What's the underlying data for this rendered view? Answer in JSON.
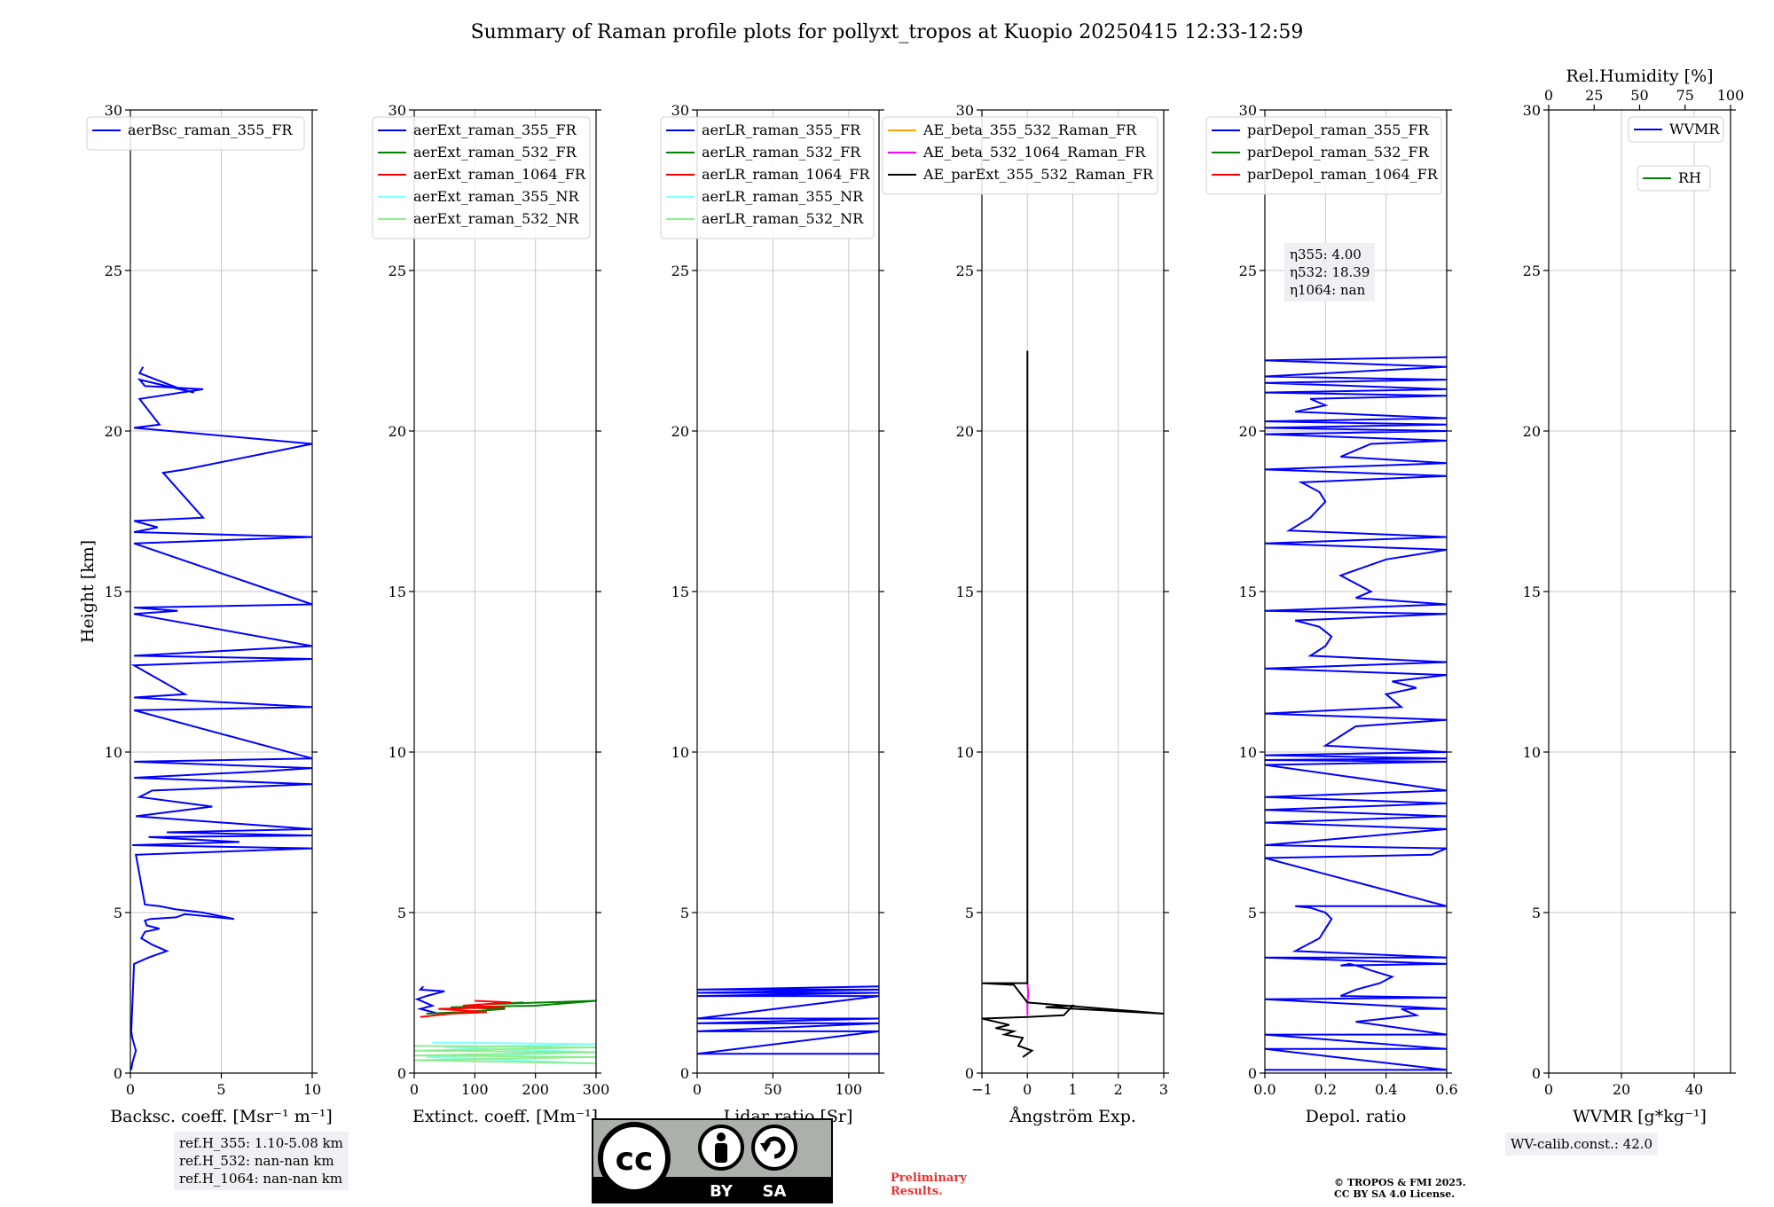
{
  "figure": {
    "title": "Summary of Raman profile plots for pollyxt_tropos at Kuopio 20250415 12:33-12:59",
    "refh": [
      "ref.H_355: 1.10-5.08 km",
      "ref.H_532: nan-nan km",
      "ref.H_1064: nan-nan km"
    ],
    "eta": [
      "η355: 4.00",
      "η532: 18.39",
      "η1064: nan"
    ],
    "wvcalib": "WV-calib.const.: 42.0",
    "license_badge": [
      "BY",
      "SA"
    ],
    "preliminary": [
      "Preliminary",
      "Results."
    ],
    "copyright": [
      "© TROPOS & FMI 2025.",
      "CC BY SA 4.0 License."
    ]
  },
  "colors": {
    "blue": "#0000ff",
    "green": "#008000",
    "red": "#ff0000",
    "cyan": "#80ffff",
    "lightgreen": "#90ee90",
    "orange": "#ffa500",
    "magenta": "#ff00ff",
    "black": "#000000",
    "grid": "#c8c8c8",
    "preliminary": "#e8312f"
  },
  "chart_data": [
    {
      "type": "line",
      "xlabel": "Backsc. coeff. [Msr⁻¹ m⁻¹]",
      "ylabel": "Height [km]",
      "xlim": [
        0,
        10
      ],
      "ylim": [
        0,
        30
      ],
      "xticks": [
        0,
        5,
        10
      ],
      "yticks": [
        0,
        5,
        10,
        15,
        20,
        25,
        30
      ],
      "grid": true,
      "legend": "top-left",
      "series": [
        {
          "name": "aerBsc_raman_355_FR",
          "color": "blue",
          "x": [
            0.05,
            0.1,
            0.2,
            0.3,
            0.2,
            0.1,
            0.05,
            0.2,
            1.0,
            2.0,
            1.2,
            0.6,
            0.8,
            1.6,
            0.9,
            0.8,
            1.1,
            2.5,
            3.0,
            5.7,
            4.0,
            2.5,
            1.6,
            0.8,
            0.3,
            10,
            0.1,
            6,
            1.0,
            10,
            2.0,
            10,
            0.3,
            4.5,
            0.5,
            1.2,
            10,
            0.2,
            7.3,
            10,
            0.2,
            10,
            0.2,
            10,
            0.2,
            3.0,
            0.2,
            10,
            0.2,
            10,
            0.2,
            2.6,
            0.2,
            10,
            0.2,
            10,
            0.2,
            1.5,
            0.2,
            4.0,
            1.8,
            3.0,
            10,
            0.2,
            1.6,
            0.5,
            4.0,
            0.8,
            0.5,
            3.5,
            2.8,
            0.5,
            0.7
          ],
          "y": [
            0.1,
            0.3,
            0.5,
            0.7,
            0.9,
            1.1,
            1.3,
            3.4,
            3.6,
            3.8,
            4.0,
            4.2,
            4.4,
            4.5,
            4.6,
            4.75,
            4.8,
            4.85,
            4.95,
            4.8,
            5.0,
            5.1,
            5.2,
            5.25,
            6.8,
            7.0,
            7.1,
            7.2,
            7.35,
            7.4,
            7.5,
            7.6,
            8.0,
            8.3,
            8.6,
            8.8,
            9.0,
            9.2,
            9.4,
            9.5,
            9.7,
            9.8,
            11.3,
            11.4,
            11.7,
            11.8,
            12.7,
            12.9,
            13.0,
            13.3,
            14.3,
            14.4,
            14.5,
            14.6,
            16.5,
            16.7,
            16.85,
            17.0,
            17.2,
            17.3,
            18.7,
            18.8,
            19.6,
            20.1,
            20.2,
            21.0,
            21.3,
            21.4,
            21.6,
            21.2,
            21.3,
            21.8,
            22.0
          ]
        }
      ]
    },
    {
      "type": "line",
      "xlabel": "Extinct. coeff. [Mm⁻¹]",
      "xlim": [
        0,
        300
      ],
      "ylim": [
        0,
        30
      ],
      "xticks": [
        0,
        100,
        200,
        300
      ],
      "yticks": [
        0,
        5,
        10,
        15,
        20,
        25,
        30
      ],
      "grid": true,
      "legend": "top-left",
      "series": [
        {
          "name": "aerExt_raman_355_FR",
          "color": "blue",
          "x": [
            40,
            10,
            30,
            5,
            20,
            50,
            10,
            15
          ],
          "y": [
            1.85,
            2.0,
            2.1,
            2.3,
            2.4,
            2.55,
            2.6,
            2.7
          ]
        },
        {
          "name": "aerExt_raman_532_FR",
          "color": "green",
          "x": [
            20,
            80,
            150,
            60,
            200,
            300,
            120,
            180
          ],
          "y": [
            1.85,
            1.9,
            2.0,
            2.05,
            2.1,
            2.25,
            2.15,
            2.2
          ]
        },
        {
          "name": "aerExt_raman_1064_FR",
          "color": "red",
          "x": [
            10,
            60,
            120,
            40,
            150,
            80,
            160,
            100
          ],
          "y": [
            1.75,
            1.85,
            1.9,
            2.0,
            2.05,
            2.1,
            2.2,
            2.25
          ]
        },
        {
          "name": "aerExt_raman_355_NR",
          "color": "cyan",
          "x": [
            300,
            20,
            300,
            50,
            300,
            30
          ],
          "y": [
            0.3,
            0.5,
            0.65,
            0.8,
            0.9,
            0.95
          ]
        },
        {
          "name": "aerExt_raman_532_NR",
          "color": "lightgreen",
          "x": [
            300,
            0,
            300,
            0,
            300,
            0,
            300,
            0
          ],
          "y": [
            0.3,
            0.4,
            0.5,
            0.55,
            0.65,
            0.7,
            0.8,
            0.85
          ]
        }
      ]
    },
    {
      "type": "line",
      "xlabel": "Lidar ratio [Sr]",
      "xlim": [
        0,
        120
      ],
      "ylim": [
        0,
        30
      ],
      "xticks": [
        0,
        50,
        100
      ],
      "yticks": [
        0,
        5,
        10,
        15,
        20,
        25,
        30
      ],
      "grid": true,
      "legend": "top-left",
      "series": [
        {
          "name": "aerLR_raman_355_FR",
          "color": "blue",
          "x": [
            120,
            0,
            120,
            0,
            120,
            0,
            120,
            0,
            120,
            0,
            120,
            0,
            120,
            0,
            120
          ],
          "y": [
            0.6,
            0.6,
            1.3,
            1.3,
            1.55,
            1.55,
            1.7,
            1.7,
            2.4,
            2.4,
            2.5,
            2.5,
            2.6,
            2.6,
            2.7
          ]
        },
        {
          "name": "aerLR_raman_532_FR",
          "color": "green",
          "x": [],
          "y": []
        },
        {
          "name": "aerLR_raman_1064_FR",
          "color": "red",
          "x": [],
          "y": []
        },
        {
          "name": "aerLR_raman_355_NR",
          "color": "cyan",
          "x": [],
          "y": []
        },
        {
          "name": "aerLR_raman_532_NR",
          "color": "lightgreen",
          "x": [],
          "y": []
        }
      ]
    },
    {
      "type": "line",
      "xlabel": "Ångström Exp.",
      "xlim": [
        -1,
        3
      ],
      "ylim": [
        0,
        30
      ],
      "xticks": [
        -1,
        0,
        1,
        2,
        3
      ],
      "yticks": [
        0,
        5,
        10,
        15,
        20,
        25,
        30
      ],
      "grid": true,
      "legend": "top",
      "series": [
        {
          "name": "AE_beta_355_532_Raman_FR",
          "color": "orange",
          "x": [],
          "y": []
        },
        {
          "name": "AE_beta_532_1064_Raman_FR",
          "color": "magenta",
          "x": [
            0.0,
            0.0,
            0.02,
            0.0
          ],
          "y": [
            1.8,
            2.2,
            2.5,
            2.8
          ]
        },
        {
          "name": "AE_parExt_355_532_Raman_FR",
          "color": "black",
          "x": [
            -0.1,
            0.1,
            -0.2,
            -0.1,
            -0.5,
            -0.3,
            -0.7,
            -0.4,
            -1.0,
            0.0,
            0.8,
            1.0,
            0.4,
            3.0,
            0.0,
            -0.3,
            -1.0,
            0.0,
            0.0
          ],
          "y": [
            0.5,
            0.7,
            0.85,
            1.1,
            1.2,
            1.3,
            1.4,
            1.5,
            1.7,
            1.75,
            1.8,
            2.1,
            2.05,
            1.85,
            2.2,
            2.75,
            2.8,
            2.8,
            22.5
          ]
        }
      ]
    },
    {
      "type": "line",
      "xlabel": "Depol. ratio",
      "xlim": [
        0.0,
        0.6
      ],
      "ylim": [
        0,
        30
      ],
      "xticks": [
        0.0,
        0.2,
        0.4,
        0.6
      ],
      "yticks": [
        0,
        5,
        10,
        15,
        20,
        25,
        30
      ],
      "grid": true,
      "legend": "top-left",
      "series": [
        {
          "name": "parDepol_raman_355_FR",
          "color": "blue",
          "x": [
            0.0,
            0.6,
            0.0,
            0.6,
            0.0,
            0.6,
            0.3,
            0.5,
            0.45,
            0.6,
            0.0,
            0.6,
            0.25,
            0.3,
            0.38,
            0.42,
            0.35,
            0.32,
            0.28,
            0.25,
            0.6,
            0.0,
            0.6,
            0.1,
            0.18,
            0.22,
            0.2,
            0.15,
            0.1,
            0.6,
            0.0,
            0.55,
            0.6,
            0.0,
            0.6,
            0.0,
            0.6,
            0.0,
            0.6,
            0.0,
            0.6,
            0.0,
            0.6,
            0.0,
            0.6,
            0.0,
            0.6,
            0.2,
            0.25,
            0.3,
            0.6,
            0.0,
            0.45,
            0.4,
            0.5,
            0.42,
            0.6,
            0.0,
            0.6,
            0.15,
            0.2,
            0.22,
            0.18,
            0.1,
            0.6,
            0.0,
            0.6,
            0.3,
            0.35,
            0.25,
            0.4,
            0.6,
            0.0,
            0.6,
            0.08,
            0.15,
            0.2,
            0.18,
            0.12,
            0.6,
            0.0,
            0.6,
            0.25,
            0.3,
            0.35,
            0.6,
            0.0,
            0.6,
            0.0,
            0.6,
            0.0,
            0.6,
            0.1,
            0.2,
            0.15,
            0.6,
            0.0,
            0.6,
            0.0,
            0.6,
            0.0,
            0.6,
            0.0,
            0.6
          ],
          "y": [
            0.1,
            0.1,
            0.75,
            0.75,
            1.2,
            1.2,
            1.6,
            1.8,
            2.0,
            2.0,
            2.3,
            2.35,
            2.4,
            2.6,
            2.8,
            3.0,
            3.2,
            3.3,
            3.4,
            3.35,
            3.4,
            3.6,
            3.6,
            3.8,
            4.2,
            4.8,
            5.0,
            5.15,
            5.2,
            5.2,
            6.7,
            6.8,
            7.0,
            7.1,
            7.6,
            7.8,
            8.0,
            8.2,
            8.4,
            8.6,
            8.8,
            9.6,
            9.7,
            9.75,
            9.8,
            9.9,
            10.0,
            10.2,
            10.5,
            10.8,
            11.0,
            11.2,
            11.4,
            11.8,
            12.0,
            12.2,
            12.4,
            12.6,
            12.8,
            13.0,
            13.3,
            13.6,
            13.9,
            14.1,
            14.3,
            14.4,
            14.6,
            14.8,
            15.0,
            15.5,
            16.0,
            16.3,
            16.5,
            16.7,
            16.9,
            17.3,
            17.8,
            18.1,
            18.4,
            18.6,
            18.8,
            19.0,
            19.2,
            19.4,
            19.6,
            19.7,
            19.9,
            20.0,
            20.1,
            20.2,
            20.3,
            20.4,
            20.6,
            20.8,
            21.0,
            21.1,
            21.2,
            21.3,
            21.5,
            21.6,
            21.7,
            22.0,
            22.2,
            22.3
          ]
        },
        {
          "name": "parDepol_raman_532_FR",
          "color": "green",
          "x": [],
          "y": []
        },
        {
          "name": "parDepol_raman_1064_FR",
          "color": "red",
          "x": [],
          "y": []
        }
      ]
    },
    {
      "type": "line",
      "xlabel": "WVMR [g*kg⁻¹]",
      "x2label": "Rel.Humidity [%]",
      "xlim": [
        0,
        50
      ],
      "x2lim": [
        0,
        100
      ],
      "ylim": [
        0,
        30
      ],
      "xticks": [
        0,
        20,
        40
      ],
      "x2ticks": [
        0,
        25,
        50,
        75,
        100
      ],
      "yticks": [
        0,
        5,
        10,
        15,
        20,
        25,
        30
      ],
      "grid": true,
      "legend": "top-right",
      "series": [
        {
          "name": "WVMR",
          "color": "blue",
          "x": [],
          "y": []
        },
        {
          "name": "RH",
          "color": "green",
          "x": [],
          "y": []
        }
      ]
    }
  ]
}
